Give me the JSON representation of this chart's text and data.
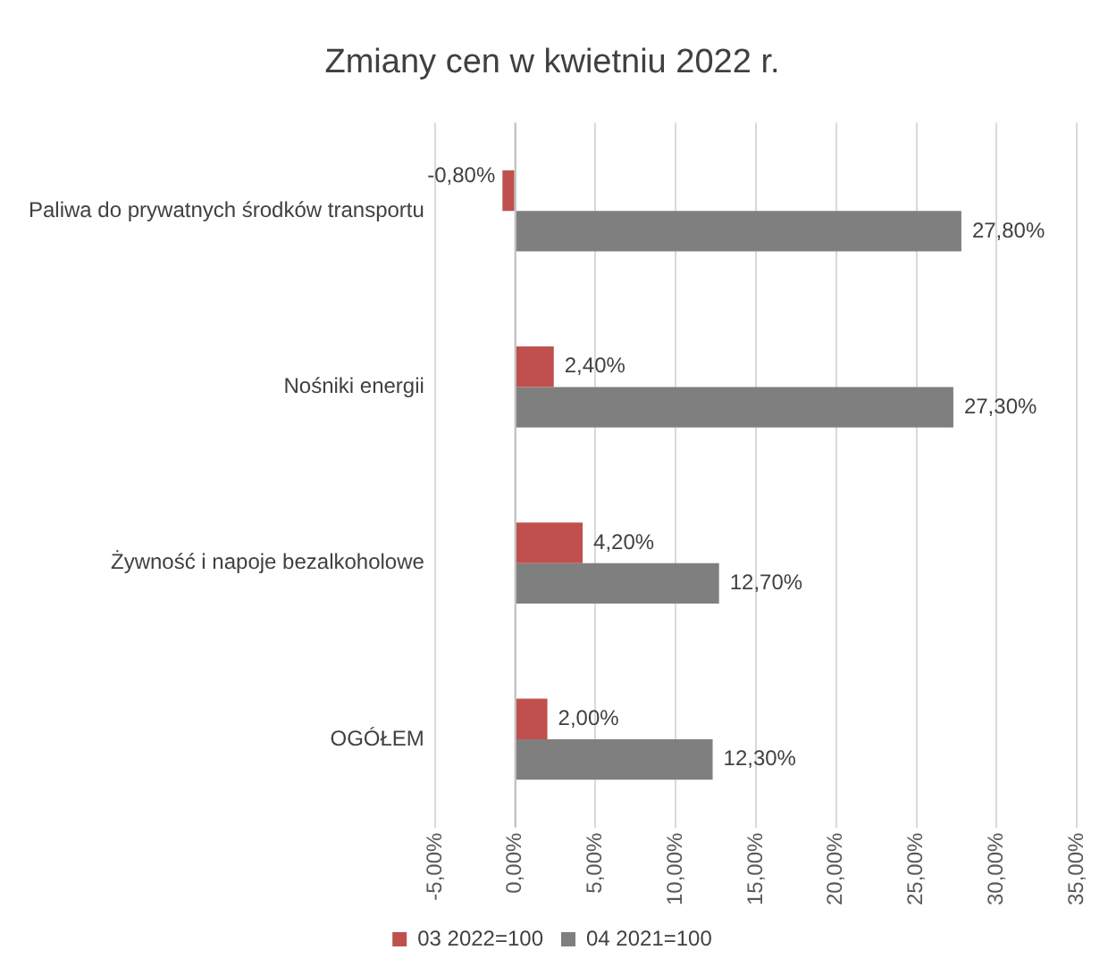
{
  "chart_data": {
    "type": "bar",
    "orientation": "horizontal",
    "title": "Zmiany cen w kwietniu 2022 r.",
    "categories": [
      "Paliwa do prywatnych środków transportu",
      "Nośniki energii",
      "Żywność i napoje bezalkoholowe",
      "OGÓŁEM"
    ],
    "series": [
      {
        "name": "03 2022=100",
        "color": "#c0504d",
        "values": [
          -0.8,
          2.4,
          4.2,
          2.0
        ],
        "value_labels": [
          "-0,80%",
          "2,40%",
          "4,20%",
          "2,00%"
        ]
      },
      {
        "name": "04 2021=100",
        "color": "#7f7f7f",
        "values": [
          27.8,
          27.3,
          12.7,
          12.3
        ],
        "value_labels": [
          "27,80%",
          "27,30%",
          "12,70%",
          "12,30%"
        ]
      }
    ],
    "xlim": [
      -5,
      35
    ],
    "xticks": [
      {
        "value": -5,
        "label": "-5,00%"
      },
      {
        "value": 0,
        "label": "0,00%"
      },
      {
        "value": 5,
        "label": "5,00%"
      },
      {
        "value": 10,
        "label": "10,00%"
      },
      {
        "value": 15,
        "label": "15,00%"
      },
      {
        "value": 20,
        "label": "20,00%"
      },
      {
        "value": 25,
        "label": "25,00%"
      },
      {
        "value": 30,
        "label": "30,00%"
      },
      {
        "value": 35,
        "label": "35,00%"
      }
    ],
    "grid": "x",
    "legend": "bottom"
  }
}
